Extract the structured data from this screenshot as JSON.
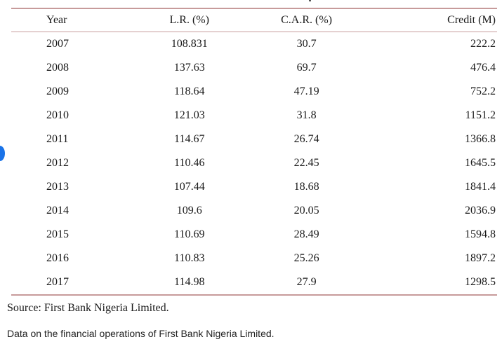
{
  "table": {
    "headers": [
      "Year",
      "L.R. (%)",
      "C.A.R. (%)",
      "Credit (M)"
    ],
    "rows": [
      [
        "2007",
        "108.831",
        "30.7",
        "222.2"
      ],
      [
        "2008",
        "137.63",
        "69.7",
        "476.4"
      ],
      [
        "2009",
        "118.64",
        "47.19",
        "752.2"
      ],
      [
        "2010",
        "121.03",
        "31.8",
        "1151.2"
      ],
      [
        "2011",
        "114.67",
        "26.74",
        "1366.8"
      ],
      [
        "2012",
        "110.46",
        "22.45",
        "1645.5"
      ],
      [
        "2013",
        "107.44",
        "18.68",
        "1841.4"
      ],
      [
        "2014",
        "109.6",
        "20.05",
        "2036.9"
      ],
      [
        "2015",
        "110.69",
        "28.49",
        "1594.8"
      ],
      [
        "2016",
        "110.83",
        "25.26",
        "1897.2"
      ],
      [
        "2017",
        "114.98",
        "27.9",
        "1298.5"
      ]
    ]
  },
  "source": "Source: First Bank Nigeria Limited.",
  "caption": "Data on the financial operations of First Bank Nigeria Limited.",
  "colors": {
    "rule": "#c79b9b",
    "side_dot": "#1a73e8"
  }
}
